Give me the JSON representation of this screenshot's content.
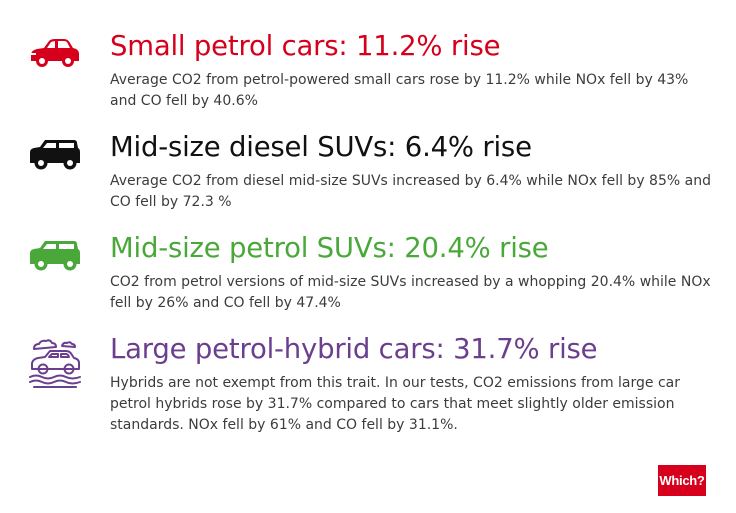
{
  "colors": {
    "red": "#d6001c",
    "black": "#111111",
    "green": "#4aa83a",
    "purple": "#6b3f8e",
    "body_text": "#3c3c3c"
  },
  "items": [
    {
      "icon": "small-car-icon",
      "title": "Small petrol cars: 11.2% rise",
      "description": "Average CO2 from petrol-powered small cars rose by 11.2% while NOx fell by 43% and CO fell by 40.6%"
    },
    {
      "icon": "suv-icon",
      "title": "Mid-size diesel SUVs: 6.4% rise",
      "description": "Average CO2 from diesel mid-size SUVs increased by 6.4% while NOx fell by 85% and CO fell by 72.3 %"
    },
    {
      "icon": "suv-icon",
      "title": "Mid-size petrol SUVs: 20.4% rise",
      "description": "CO2 from petrol versions of mid-size SUVs increased by a whopping 20.4% while NOx fell by 26% and CO fell by 47.4%"
    },
    {
      "icon": "hybrid-car-icon",
      "title": "Large petrol-hybrid cars: 31.7% rise",
      "description": "Hybrids are not exempt from this trait. In our tests, CO2 emissions from large car petrol hybrids rose by 31.7% compared to cars that meet slightly older emission standards. NOx fell by 61% and CO fell by 31.1%."
    }
  ],
  "logo": {
    "text": "Which?",
    "background": "#d6001c"
  }
}
